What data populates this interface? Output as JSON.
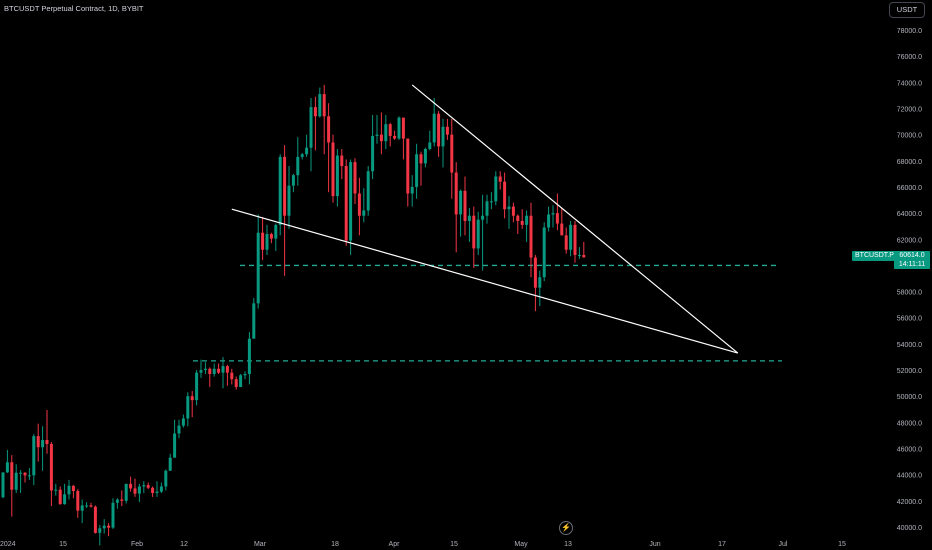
{
  "header": {
    "title": "BTCUSDT Perpetual Contract, 1D, BYBIT"
  },
  "currency_button": "USDT",
  "price_tag": {
    "symbol": "BTCUSDT.P",
    "price": "60614.0",
    "countdown": "14:11:11"
  },
  "colors": {
    "up": "#089981",
    "down": "#f23645",
    "dashed": "#22ab94",
    "trendline": "#ffffff"
  },
  "chart_data": {
    "type": "candlestick",
    "y_range": [
      39500,
      79500
    ],
    "y_ticks": [
      40000,
      42000,
      44000,
      46000,
      48000,
      50000,
      52000,
      54000,
      56000,
      58000,
      60000,
      62000,
      64000,
      66000,
      68000,
      70000,
      72000,
      74000,
      76000,
      78000
    ],
    "x_ticks": [
      "2024",
      "15",
      "Feb",
      "12",
      "Mar",
      "18",
      "Apr",
      "15",
      "May",
      "13",
      "Jun",
      "17",
      "Jul",
      "15"
    ],
    "horizontal_levels": [
      60000,
      52700
    ],
    "trendlines": [
      {
        "name": "upper",
        "from": [
          "2024-04-03",
          73800
        ],
        "to": [
          "2024-06-16",
          53300
        ]
      },
      {
        "name": "lower",
        "from": [
          "2024-02-22",
          64300
        ],
        "to": [
          "2024-06-16",
          53300
        ]
      }
    ],
    "candles": [
      [
        "2024-01-01",
        42280,
        44150,
        42200,
        44180
      ],
      [
        "2024-01-02",
        44180,
        45900,
        44130,
        44950
      ],
      [
        "2024-01-03",
        44950,
        45500,
        40800,
        42850
      ],
      [
        "2024-01-04",
        42850,
        44800,
        42600,
        44150
      ],
      [
        "2024-01-05",
        44150,
        44350,
        42600,
        44150
      ],
      [
        "2024-01-06",
        44150,
        44200,
        43400,
        43950
      ],
      [
        "2024-01-07",
        43950,
        44500,
        43600,
        43950
      ],
      [
        "2024-01-08",
        43950,
        47100,
        43200,
        46950
      ],
      [
        "2024-01-09",
        46950,
        47900,
        45000,
        46100
      ],
      [
        "2024-01-10",
        46100,
        47700,
        44300,
        46650
      ],
      [
        "2024-01-11",
        46650,
        48950,
        45600,
        46350
      ],
      [
        "2024-01-12",
        46350,
        46500,
        41600,
        42800
      ],
      [
        "2024-01-13",
        42800,
        43300,
        42400,
        42850
      ],
      [
        "2024-01-14",
        42850,
        43100,
        41700,
        41750
      ],
      [
        "2024-01-15",
        41750,
        43300,
        41700,
        42500
      ],
      [
        "2024-01-16",
        42500,
        43600,
        42100,
        43150
      ],
      [
        "2024-01-17",
        43150,
        43200,
        42200,
        42750
      ],
      [
        "2024-01-18",
        42750,
        42900,
        40700,
        41250
      ],
      [
        "2024-01-19",
        41250,
        42100,
        40300,
        41650
      ],
      [
        "2024-01-20",
        41650,
        41900,
        41450,
        41650
      ],
      [
        "2024-01-21",
        41650,
        41850,
        41500,
        41550
      ],
      [
        "2024-01-22",
        41550,
        41650,
        39500,
        39550
      ],
      [
        "2024-01-23",
        39550,
        40150,
        38600,
        39900
      ],
      [
        "2024-01-24",
        39900,
        40600,
        39500,
        40100
      ],
      [
        "2024-01-25",
        40100,
        40300,
        39300,
        39950
      ],
      [
        "2024-01-26",
        39950,
        42200,
        39850,
        41850
      ],
      [
        "2024-01-27",
        41850,
        42200,
        41400,
        42100
      ],
      [
        "2024-01-28",
        42100,
        42800,
        41600,
        42000
      ],
      [
        "2024-01-29",
        42000,
        43300,
        41800,
        43300
      ],
      [
        "2024-01-30",
        43300,
        43850,
        42700,
        42950
      ],
      [
        "2024-01-31",
        42950,
        43700,
        42300,
        42550
      ],
      [
        "2024-02-01",
        42550,
        43300,
        41900,
        43100
      ],
      [
        "2024-02-02",
        43100,
        43500,
        42600,
        43200
      ],
      [
        "2024-02-03",
        43200,
        43400,
        42900,
        43000
      ],
      [
        "2024-02-04",
        43000,
        43100,
        42300,
        42600
      ],
      [
        "2024-02-05",
        42600,
        43500,
        42300,
        42700
      ],
      [
        "2024-02-06",
        42700,
        43400,
        42600,
        43100
      ],
      [
        "2024-02-07",
        43100,
        44400,
        42800,
        44300
      ],
      [
        "2024-02-08",
        44300,
        45600,
        44300,
        45300
      ],
      [
        "2024-02-09",
        45300,
        48200,
        45300,
        47150
      ],
      [
        "2024-02-10",
        47150,
        48200,
        46800,
        47750
      ],
      [
        "2024-02-11",
        47750,
        48600,
        47600,
        48300
      ],
      [
        "2024-02-12",
        48300,
        50300,
        47700,
        50000
      ],
      [
        "2024-02-13",
        50000,
        50400,
        48400,
        49700
      ],
      [
        "2024-02-14",
        49700,
        52000,
        49300,
        51800
      ],
      [
        "2024-02-15",
        51800,
        52800,
        51400,
        52000
      ],
      [
        "2024-02-16",
        52000,
        52600,
        51700,
        52100
      ],
      [
        "2024-02-17",
        52100,
        52200,
        50700,
        51700
      ],
      [
        "2024-02-18",
        51700,
        52500,
        51500,
        52100
      ],
      [
        "2024-02-19",
        52100,
        52500,
        51700,
        51800
      ],
      [
        "2024-02-20",
        51800,
        53000,
        50600,
        52300
      ],
      [
        "2024-02-21",
        52300,
        52400,
        50800,
        51800
      ],
      [
        "2024-02-22",
        51800,
        52100,
        50900,
        51300
      ],
      [
        "2024-02-23",
        51300,
        51500,
        50500,
        50700
      ],
      [
        "2024-02-24",
        50700,
        51700,
        50700,
        51600
      ],
      [
        "2024-02-25",
        51600,
        51900,
        51300,
        51700
      ],
      [
        "2024-02-26",
        51700,
        54900,
        50900,
        54400
      ],
      [
        "2024-02-27",
        54400,
        57500,
        54400,
        57100
      ],
      [
        "2024-02-28",
        57100,
        63900,
        56700,
        62500
      ],
      [
        "2024-02-29",
        62500,
        63700,
        60400,
        61200
      ],
      [
        "2024-03-01",
        61200,
        63100,
        60800,
        62400
      ],
      [
        "2024-03-02",
        62400,
        62500,
        61700,
        62050
      ],
      [
        "2024-03-03",
        62050,
        63200,
        61100,
        63100
      ],
      [
        "2024-03-04",
        63100,
        68500,
        62300,
        68300
      ],
      [
        "2024-03-05",
        68300,
        69200,
        59200,
        63800
      ],
      [
        "2024-03-06",
        63800,
        67600,
        62800,
        66100
      ],
      [
        "2024-03-07",
        66100,
        67000,
        65600,
        66900
      ],
      [
        "2024-03-08",
        66900,
        69800,
        66100,
        68300
      ],
      [
        "2024-03-09",
        68300,
        68600,
        68100,
        68500
      ],
      [
        "2024-03-10",
        68500,
        70000,
        68300,
        69000
      ],
      [
        "2024-03-11",
        69000,
        72800,
        67200,
        72100
      ],
      [
        "2024-03-12",
        72100,
        72900,
        68800,
        71400
      ],
      [
        "2024-03-13",
        71400,
        73600,
        71300,
        73100
      ],
      [
        "2024-03-14",
        73100,
        73800,
        68500,
        71400
      ],
      [
        "2024-03-15",
        71400,
        72400,
        65600,
        69400
      ],
      [
        "2024-03-16",
        69400,
        70000,
        64800,
        65300
      ],
      [
        "2024-03-17",
        65300,
        68900,
        64500,
        68400
      ],
      [
        "2024-03-18",
        68400,
        68900,
        66600,
        67600
      ],
      [
        "2024-03-19",
        67600,
        68100,
        61500,
        61900
      ],
      [
        "2024-03-20",
        61900,
        68100,
        60800,
        67900
      ],
      [
        "2024-03-21",
        67900,
        68200,
        64700,
        65500
      ],
      [
        "2024-03-22",
        65500,
        66700,
        62300,
        63800
      ],
      [
        "2024-03-23",
        63800,
        65900,
        63300,
        64200
      ],
      [
        "2024-03-24",
        64200,
        67600,
        63800,
        67200
      ],
      [
        "2024-03-25",
        67200,
        71500,
        66600,
        69900
      ],
      [
        "2024-03-26",
        69900,
        71500,
        69300,
        70000
      ],
      [
        "2024-03-27",
        70000,
        71700,
        68500,
        69500
      ],
      [
        "2024-03-28",
        69500,
        71500,
        68900,
        70800
      ],
      [
        "2024-03-29",
        70800,
        70900,
        69100,
        69900
      ],
      [
        "2024-03-30",
        69900,
        70300,
        69600,
        69700
      ],
      [
        "2024-03-31",
        69700,
        71400,
        69600,
        71300
      ],
      [
        "2024-04-01",
        71300,
        71300,
        68100,
        69700
      ],
      [
        "2024-04-02",
        69700,
        69700,
        64500,
        65500
      ],
      [
        "2024-04-03",
        65500,
        66900,
        64500,
        66000
      ],
      [
        "2024-04-04",
        66000,
        69300,
        65100,
        68500
      ],
      [
        "2024-04-05",
        68500,
        68700,
        66100,
        67800
      ],
      [
        "2024-04-06",
        67800,
        69000,
        67500,
        68900
      ],
      [
        "2024-04-07",
        68900,
        70300,
        68800,
        69400
      ],
      [
        "2024-04-08",
        69400,
        72800,
        69100,
        71600
      ],
      [
        "2024-04-09",
        71600,
        71800,
        68300,
        69100
      ],
      [
        "2024-04-10",
        69100,
        71200,
        67500,
        70600
      ],
      [
        "2024-04-11",
        70600,
        71200,
        69600,
        70000
      ],
      [
        "2024-04-12",
        70000,
        71200,
        65100,
        67100
      ],
      [
        "2024-04-13",
        67100,
        67900,
        61000,
        63900
      ],
      [
        "2024-04-14",
        63900,
        65800,
        62200,
        65700
      ],
      [
        "2024-04-15",
        65700,
        66800,
        62300,
        63400
      ],
      [
        "2024-04-16",
        63400,
        64400,
        61800,
        63800
      ],
      [
        "2024-04-17",
        63800,
        64500,
        59800,
        61300
      ],
      [
        "2024-04-18",
        61300,
        64100,
        60800,
        63500
      ],
      [
        "2024-04-19",
        63500,
        65400,
        59600,
        63800
      ],
      [
        "2024-04-20",
        63800,
        65400,
        63200,
        64900
      ],
      [
        "2024-04-21",
        64900,
        65600,
        64300,
        64900
      ],
      [
        "2024-04-22",
        64900,
        67200,
        64600,
        66800
      ],
      [
        "2024-04-23",
        66800,
        67200,
        65800,
        66400
      ],
      [
        "2024-04-24",
        66400,
        67100,
        63600,
        64300
      ],
      [
        "2024-04-25",
        64300,
        65300,
        62800,
        64500
      ],
      [
        "2024-04-26",
        64500,
        64800,
        63300,
        63800
      ],
      [
        "2024-04-27",
        63800,
        63900,
        62400,
        63400
      ],
      [
        "2024-04-28",
        63400,
        64300,
        62800,
        63100
      ],
      [
        "2024-04-29",
        63100,
        64200,
        61800,
        63800
      ],
      [
        "2024-04-30",
        63800,
        64800,
        59100,
        60600
      ],
      [
        "2024-05-01",
        60600,
        60800,
        56500,
        58300
      ],
      [
        "2024-05-02",
        58300,
        59600,
        56900,
        59100
      ],
      [
        "2024-05-03",
        59100,
        63300,
        58800,
        62900
      ],
      [
        "2024-05-04",
        62900,
        64500,
        62600,
        63900
      ],
      [
        "2024-05-05",
        63900,
        64600,
        62900,
        64000
      ],
      [
        "2024-05-06",
        64000,
        65500,
        62700,
        63200
      ],
      [
        "2024-05-07",
        63200,
        64400,
        62300,
        62300
      ],
      [
        "2024-05-08",
        62300,
        62900,
        60900,
        61200
      ],
      [
        "2024-05-09",
        61200,
        63400,
        60700,
        63100
      ],
      [
        "2024-05-10",
        63100,
        63400,
        60200,
        60800
      ],
      [
        "2024-05-11",
        60800,
        61400,
        60500,
        60800
      ],
      [
        "2024-05-12",
        60800,
        61800,
        60600,
        60614
      ]
    ]
  }
}
